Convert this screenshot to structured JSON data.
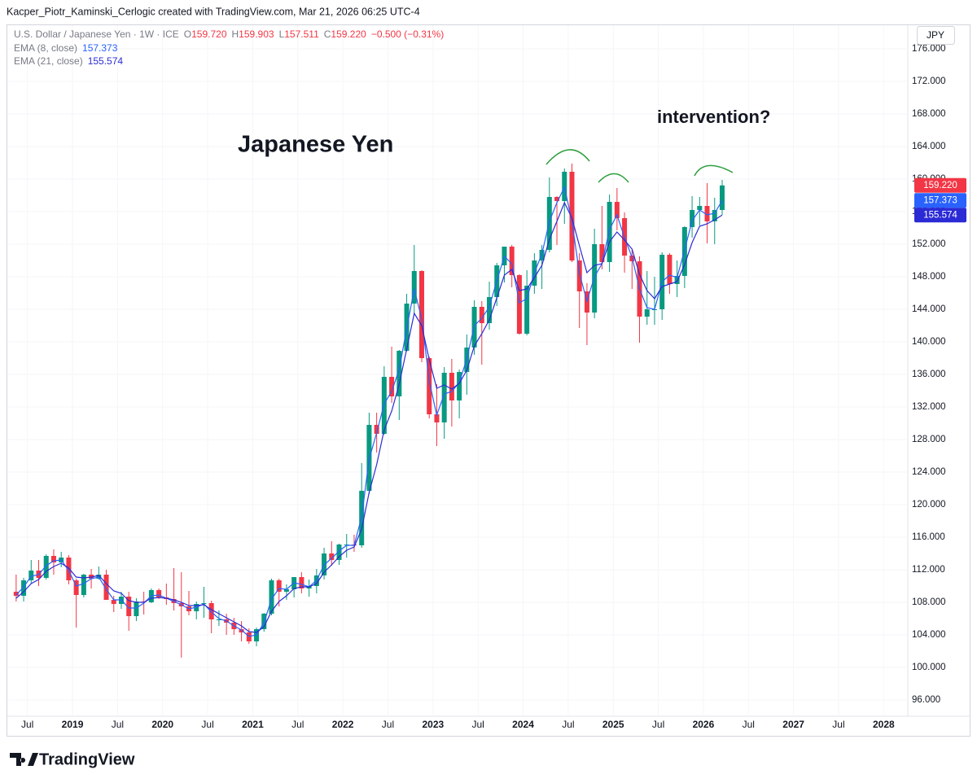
{
  "header": {
    "text": "Kacper_Piotr_Kaminski_Cerlogic created with TradingView.com, Mar 21, 2026 06:25 UTC-4"
  },
  "chart_data": {
    "type": "candlestick",
    "title": "U.S. Dollar / Japanese Yen · 1W · ICE",
    "ohlc_legend": [
      {
        "label": "O",
        "value": "159.720"
      },
      {
        "label": "H",
        "value": "159.903"
      },
      {
        "label": "L",
        "value": "157.511"
      },
      {
        "label": "C",
        "value": "159.220"
      }
    ],
    "change": "−0.500 (−0.31%)",
    "currency": "JPY",
    "x": [
      "2018-05",
      "2018-06",
      "2018-07",
      "2018-08",
      "2018-09",
      "2018-10",
      "2018-11",
      "2018-12",
      "2019-01",
      "2019-02",
      "2019-03",
      "2019-04",
      "2019-05",
      "2019-06",
      "2019-07",
      "2019-08",
      "2019-09",
      "2019-10",
      "2019-11",
      "2019-12",
      "2020-01",
      "2020-02",
      "2020-03",
      "2020-04",
      "2020-05",
      "2020-06",
      "2020-07",
      "2020-08",
      "2020-09",
      "2020-10",
      "2020-11",
      "2020-12",
      "2021-01",
      "2021-02",
      "2021-03",
      "2021-04",
      "2021-05",
      "2021-06",
      "2021-07",
      "2021-08",
      "2021-09",
      "2021-10",
      "2021-11",
      "2021-12",
      "2022-01",
      "2022-02",
      "2022-03",
      "2022-04",
      "2022-05",
      "2022-06",
      "2022-07",
      "2022-08",
      "2022-09",
      "2022-10",
      "2022-11",
      "2022-12",
      "2023-01",
      "2023-02",
      "2023-03",
      "2023-04",
      "2023-05",
      "2023-06",
      "2023-07",
      "2023-08",
      "2023-09",
      "2023-10",
      "2023-11",
      "2023-12",
      "2024-01",
      "2024-02",
      "2024-03",
      "2024-04",
      "2024-05",
      "2024-06",
      "2024-07",
      "2024-08",
      "2024-09",
      "2024-10",
      "2024-11",
      "2024-12",
      "2025-01",
      "2025-02",
      "2025-03",
      "2025-04",
      "2025-05",
      "2025-06",
      "2025-07",
      "2025-08",
      "2025-09",
      "2025-10",
      "2025-11",
      "2025-12",
      "2026-01",
      "2026-02",
      "2026-03"
    ],
    "open": [
      109.3,
      108.8,
      110.7,
      111.9,
      111.0,
      113.7,
      112.9,
      113.5,
      110.7,
      108.9,
      111.4,
      110.9,
      111.4,
      108.3,
      107.8,
      108.7,
      106.3,
      108.1,
      108.0,
      109.5,
      108.6,
      108.4,
      107.9,
      107.5,
      106.9,
      107.8,
      107.9,
      105.9,
      105.9,
      105.5,
      104.7,
      104.3,
      103.2,
      104.7,
      106.6,
      110.7,
      109.3,
      109.6,
      111.1,
      109.7,
      110.0,
      111.3,
      114.0,
      113.2,
      115.1,
      115.1,
      115.0,
      121.7,
      129.8,
      128.7,
      135.7,
      133.3,
      138.9,
      144.7,
      148.7,
      138.0,
      131.1,
      130.1,
      136.2,
      132.8,
      136.3,
      139.3,
      144.3,
      142.3,
      145.5,
      149.4,
      151.7,
      148.2,
      141.0,
      146.9,
      150.0,
      151.3,
      157.8,
      157.3,
      160.9,
      150.0,
      146.2,
      143.6,
      152.0,
      149.8,
      157.2,
      155.2,
      150.6,
      149.9,
      143.1,
      144.0,
      144.0,
      150.7,
      147.1,
      148.1,
      154.1,
      156.2,
      156.7,
      154.8,
      156.2
    ],
    "high": [
      111.4,
      111.0,
      113.2,
      113.2,
      113.9,
      114.5,
      114.2,
      113.8,
      110.9,
      111.5,
      112.1,
      112.4,
      112.0,
      108.8,
      109.3,
      109.3,
      108.5,
      109.3,
      109.7,
      109.7,
      110.3,
      112.2,
      111.7,
      109.4,
      108.1,
      109.9,
      108.2,
      107.0,
      106.6,
      106.1,
      105.7,
      104.8,
      104.9,
      106.7,
      110.9,
      110.9,
      110.2,
      111.1,
      111.7,
      110.8,
      112.1,
      114.7,
      115.5,
      115.2,
      116.4,
      116.3,
      125.1,
      131.3,
      131.3,
      137.0,
      139.4,
      139.0,
      145.9,
      151.9,
      148.8,
      138.2,
      134.8,
      136.9,
      137.9,
      136.6,
      140.9,
      145.1,
      145.0,
      147.4,
      149.7,
      151.7,
      151.9,
      148.3,
      148.8,
      150.9,
      151.9,
      160.2,
      157.9,
      161.3,
      161.9,
      150.9,
      147.2,
      153.9,
      156.7,
      158.1,
      158.9,
      155.9,
      151.3,
      150.5,
      148.7,
      148.0,
      151.0,
      150.9,
      150.0,
      154.2,
      157.9,
      157.8,
      159.5,
      157.7,
      159.9
    ],
    "low": [
      108.1,
      108.1,
      110.3,
      110.0,
      110.8,
      111.4,
      112.3,
      110.2,
      104.9,
      108.6,
      109.7,
      110.8,
      108.3,
      106.8,
      107.2,
      104.5,
      105.7,
      106.5,
      107.9,
      108.4,
      107.7,
      107.0,
      101.2,
      106.4,
      105.9,
      106.1,
      104.2,
      105.1,
      104.0,
      104.0,
      103.2,
      102.9,
      102.6,
      104.4,
      106.4,
      107.5,
      108.3,
      108.6,
      109.1,
      108.7,
      109.1,
      110.8,
      112.5,
      112.6,
      113.5,
      114.2,
      114.7,
      121.3,
      126.4,
      128.6,
      132.5,
      130.4,
      138.8,
      143.5,
      137.5,
      130.6,
      127.2,
      128.1,
      129.6,
      130.6,
      133.5,
      138.4,
      137.2,
      141.5,
      144.4,
      147.3,
      146.7,
      140.9,
      140.8,
      145.9,
      146.5,
      151.0,
      151.9,
      154.5,
      149.8,
      141.7,
      139.6,
      142.9,
      148.9,
      148.6,
      153.7,
      148.5,
      146.5,
      139.9,
      142.1,
      142.1,
      142.7,
      145.9,
      145.5,
      146.6,
      152.8,
      154.3,
      152.1,
      152.0,
      155.6
    ],
    "close": [
      108.8,
      110.7,
      111.9,
      111.0,
      113.7,
      112.9,
      113.5,
      110.7,
      108.9,
      111.4,
      110.9,
      111.4,
      108.3,
      107.8,
      108.7,
      106.3,
      108.1,
      108.0,
      109.5,
      108.6,
      108.4,
      107.9,
      107.5,
      106.9,
      107.8,
      107.9,
      105.9,
      105.9,
      105.5,
      104.7,
      104.3,
      103.2,
      104.7,
      106.6,
      110.7,
      109.3,
      109.6,
      111.1,
      109.7,
      110.0,
      111.3,
      114.0,
      113.2,
      115.1,
      115.1,
      115.0,
      121.7,
      129.8,
      128.7,
      135.7,
      133.3,
      138.9,
      144.7,
      148.7,
      138.0,
      131.1,
      130.1,
      136.2,
      132.8,
      136.3,
      139.3,
      144.3,
      142.3,
      145.5,
      149.4,
      151.7,
      148.2,
      141.0,
      146.9,
      150.0,
      151.3,
      157.8,
      157.3,
      160.9,
      150.0,
      146.2,
      143.6,
      152.0,
      149.8,
      157.2,
      155.2,
      150.6,
      149.9,
      143.1,
      144.0,
      144.0,
      150.7,
      147.1,
      148.1,
      154.1,
      156.2,
      156.7,
      154.8,
      156.2,
      159.22
    ],
    "up_color": "#089981",
    "down_color": "#f23645",
    "series": [
      {
        "name": "EMA (8, close)",
        "color": "#2962ff",
        "values": [
          108.9,
          109.9,
          111.2,
          111.4,
          112.5,
          113.1,
          113.2,
          111.9,
          110.0,
          110.3,
          110.9,
          111.1,
          109.6,
          108.3,
          108.3,
          107.3,
          107.3,
          107.9,
          108.8,
          108.9,
          108.5,
          108.1,
          107.7,
          107.2,
          107.4,
          107.8,
          106.8,
          106.0,
          105.7,
          105.1,
          104.6,
          103.8,
          104.0,
          105.5,
          108.4,
          109.7,
          109.6,
          110.4,
          110.2,
          109.9,
          110.7,
          112.6,
          113.4,
          114.3,
          115.0,
          115.0,
          118.5,
          125.6,
          128.8,
          132.4,
          133.9,
          136.6,
          141.6,
          146.5,
          142.8,
          135.2,
          131.0,
          133.6,
          133.9,
          135.0,
          137.9,
          142.0,
          142.9,
          144.3,
          147.5,
          150.5,
          149.6,
          144.8,
          145.3,
          148.5,
          150.8,
          154.8,
          157.1,
          159.0,
          154.8,
          148.4,
          145.0,
          148.0,
          149.6,
          153.8,
          155.6,
          152.8,
          150.4,
          146.5,
          144.2,
          144.0,
          147.4,
          148.2,
          147.9,
          151.3,
          154.9,
          156.2,
          155.6,
          155.8,
          157.373
        ]
      },
      {
        "name": "EMA (21, close)",
        "color": "#2b2bd6",
        "values": [
          108.5,
          109.3,
          110.3,
          110.8,
          111.8,
          112.4,
          112.8,
          112.2,
          111.1,
          111.0,
          111.1,
          111.3,
          110.3,
          109.4,
          109.1,
          108.2,
          108.0,
          108.0,
          108.5,
          108.6,
          108.5,
          108.3,
          108.0,
          107.6,
          107.6,
          107.7,
          107.1,
          106.6,
          106.1,
          105.6,
          105.1,
          104.4,
          104.3,
          105.0,
          106.9,
          108.1,
          108.8,
          109.7,
          109.9,
          109.9,
          110.3,
          111.7,
          112.6,
          113.6,
          114.4,
          114.8,
          117.0,
          121.5,
          124.9,
          129.2,
          131.5,
          134.8,
          139.1,
          143.5,
          142.0,
          137.8,
          134.3,
          134.7,
          134.2,
          134.9,
          136.5,
          139.5,
          141.0,
          142.7,
          145.4,
          148.2,
          148.9,
          146.3,
          146.5,
          147.9,
          149.4,
          152.6,
          154.8,
          157.1,
          155.2,
          151.8,
          148.5,
          149.4,
          149.6,
          152.3,
          153.5,
          152.5,
          151.4,
          148.3,
          146.3,
          145.3,
          146.8,
          147.1,
          147.4,
          149.5,
          152.2,
          154.2,
          154.5,
          155.0,
          155.574
        ]
      }
    ],
    "last_price": {
      "value": 159.22,
      "label": "159.220"
    },
    "ylim": [
      94,
      179
    ],
    "yticks": [
      {
        "value": 96,
        "label": "96.000"
      },
      {
        "value": 100,
        "label": "100.000"
      },
      {
        "value": 104,
        "label": "104.000"
      },
      {
        "value": 108,
        "label": "108.000"
      },
      {
        "value": 112,
        "label": "112.000"
      },
      {
        "value": 116,
        "label": "116.000"
      },
      {
        "value": 120,
        "label": "120.000"
      },
      {
        "value": 124,
        "label": "124.000"
      },
      {
        "value": 128,
        "label": "128.000"
      },
      {
        "value": 132,
        "label": "132.000"
      },
      {
        "value": 136,
        "label": "136.000"
      },
      {
        "value": 140,
        "label": "140.000"
      },
      {
        "value": 144,
        "label": "144.000"
      },
      {
        "value": 148,
        "label": "148.000"
      },
      {
        "value": 152,
        "label": "152.000"
      },
      {
        "value": 156,
        "label": "156.000"
      },
      {
        "value": 160,
        "label": "160.000"
      },
      {
        "value": 164,
        "label": "164.000"
      },
      {
        "value": 168,
        "label": "168.000"
      },
      {
        "value": 172,
        "label": "172.000"
      },
      {
        "value": 176,
        "label": "176.000"
      }
    ],
    "xlim": [
      "2018-04",
      "2028-04"
    ],
    "xticks": [
      {
        "value": "2018-07",
        "label": "Jul"
      },
      {
        "value": "2019-01",
        "label": "2019"
      },
      {
        "value": "2019-07",
        "label": "Jul"
      },
      {
        "value": "2020-01",
        "label": "2020"
      },
      {
        "value": "2020-07",
        "label": "Jul"
      },
      {
        "value": "2021-01",
        "label": "2021"
      },
      {
        "value": "2021-07",
        "label": "Jul"
      },
      {
        "value": "2022-01",
        "label": "2022"
      },
      {
        "value": "2022-07",
        "label": "Jul"
      },
      {
        "value": "2023-01",
        "label": "2023"
      },
      {
        "value": "2023-07",
        "label": "Jul"
      },
      {
        "value": "2024-01",
        "label": "2024"
      },
      {
        "value": "2024-07",
        "label": "Jul"
      },
      {
        "value": "2025-01",
        "label": "2025"
      },
      {
        "value": "2025-07",
        "label": "Jul"
      },
      {
        "value": "2026-01",
        "label": "2026"
      },
      {
        "value": "2026-07",
        "label": "Jul"
      },
      {
        "value": "2027-01",
        "label": "2027"
      },
      {
        "value": "2027-07",
        "label": "Jul"
      },
      {
        "value": "2028-01",
        "label": "2028"
      }
    ],
    "grid": true,
    "annotations": [
      "Japanese Yen",
      "intervention?"
    ]
  },
  "footer": {
    "brand": "TradingView"
  }
}
